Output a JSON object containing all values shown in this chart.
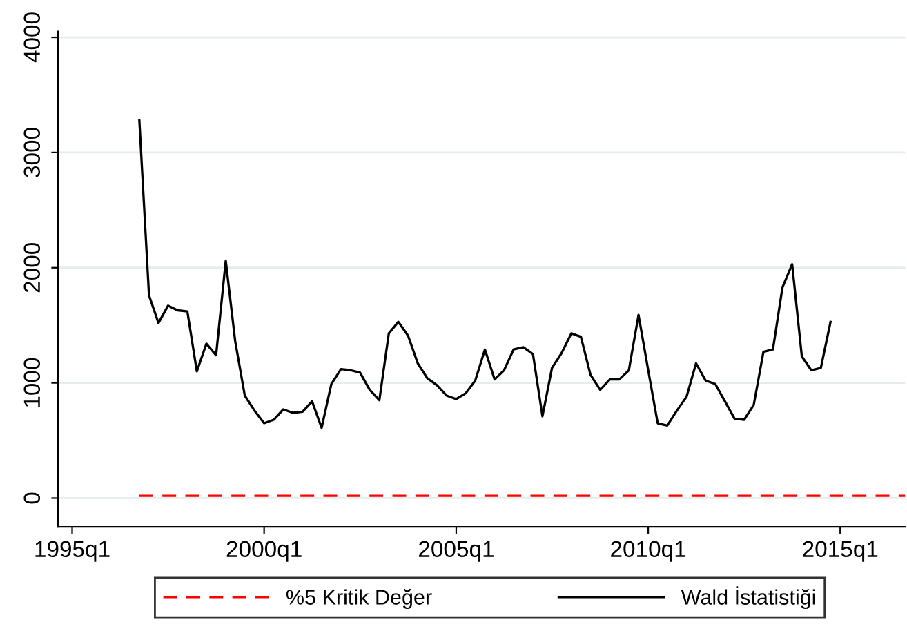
{
  "chart_data": {
    "type": "line",
    "xlim": [
      "1994-08-20",
      "2016-09-10"
    ],
    "ylim": [
      -250,
      4050
    ],
    "xticks": [
      {
        "value": "1995-01",
        "label": "1995q1"
      },
      {
        "value": "2000-01",
        "label": "2000q1"
      },
      {
        "value": "2005-01",
        "label": "2005q1"
      },
      {
        "value": "2010-01",
        "label": "2010q1"
      },
      {
        "value": "2015-01",
        "label": "2015q1"
      }
    ],
    "yticks": [
      0,
      1000,
      2000,
      3000,
      4000
    ],
    "grid": "y",
    "legend": "bottom",
    "series": [
      {
        "name": "%5 Kritik Değer",
        "color": "#ff0000",
        "line_style": "dashed",
        "x": [
          "1996-10",
          "2016-09-10"
        ],
        "values": [
          20,
          20
        ]
      },
      {
        "name": "Wald İstatistiği",
        "color": "#000000",
        "line_style": "solid",
        "x": [
          "1996-10",
          "1997-01",
          "1997-04",
          "1997-07",
          "1997-10",
          "1998-01",
          "1998-04",
          "1998-07",
          "1998-10",
          "1999-01",
          "1999-04",
          "1999-07",
          "1999-10",
          "2000-01",
          "2000-04",
          "2000-07",
          "2000-10",
          "2001-01",
          "2001-04",
          "2001-07",
          "2001-10",
          "2002-01",
          "2002-04",
          "2002-07",
          "2002-10",
          "2003-01",
          "2003-04",
          "2003-07",
          "2003-10",
          "2004-01",
          "2004-04",
          "2004-07",
          "2004-10",
          "2005-01",
          "2005-04",
          "2005-07",
          "2005-10",
          "2006-01",
          "2006-04",
          "2006-07",
          "2006-10",
          "2007-01",
          "2007-04",
          "2007-07",
          "2007-10",
          "2008-01",
          "2008-04",
          "2008-07",
          "2008-10",
          "2009-01",
          "2009-04",
          "2009-07",
          "2009-10",
          "2010-01",
          "2010-04",
          "2010-07",
          "2010-10",
          "2011-01",
          "2011-04",
          "2011-07",
          "2011-10",
          "2012-01",
          "2012-04",
          "2012-07",
          "2012-10",
          "2013-01",
          "2013-04",
          "2013-07",
          "2013-10",
          "2014-01",
          "2014-04",
          "2014-07",
          "2014-10"
        ],
        "values": [
          3280,
          1760,
          1520,
          1670,
          1630,
          1620,
          1100,
          1340,
          1240,
          2060,
          1360,
          890,
          760,
          650,
          680,
          770,
          740,
          750,
          840,
          610,
          990,
          1120,
          1110,
          1090,
          940,
          850,
          1430,
          1530,
          1410,
          1170,
          1040,
          980,
          890,
          860,
          910,
          1020,
          1290,
          1030,
          1110,
          1290,
          1310,
          1250,
          710,
          1130,
          1260,
          1430,
          1400,
          1070,
          940,
          1030,
          1030,
          1110,
          1590,
          1110,
          650,
          630,
          760,
          880,
          1170,
          1020,
          990,
          840,
          690,
          680,
          810,
          1270,
          1290,
          1830,
          2030,
          1230,
          1110,
          1130,
          1530
        ]
      }
    ]
  }
}
